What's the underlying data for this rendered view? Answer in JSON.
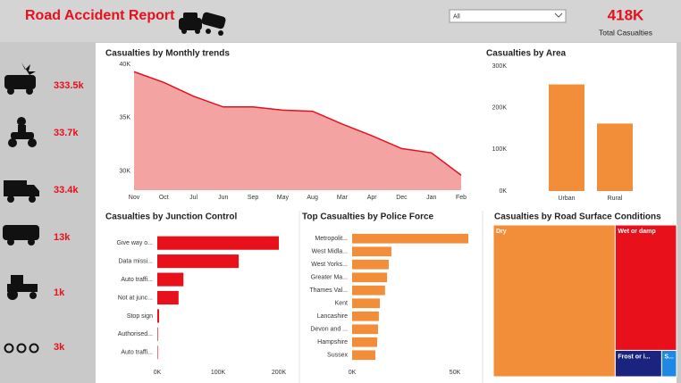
{
  "header": {
    "title": "Road Accident Report",
    "filter": "All",
    "kpi_value": "418K",
    "kpi_label": "Total Casualties"
  },
  "sidebar": [
    "333.5k",
    "33.7k",
    "33.4k",
    "13k",
    "1k",
    "3k"
  ],
  "chart_data": [
    {
      "type": "area",
      "title": "Casualties by Monthly trends",
      "categories": [
        "Nov",
        "Oct",
        "Jul",
        "Jun",
        "Sep",
        "May",
        "Aug",
        "Mar",
        "Apr",
        "Dec",
        "Jan",
        "Feb"
      ],
      "values": [
        39300,
        38300,
        37000,
        36000,
        36000,
        35700,
        35600,
        34400,
        33300,
        32100,
        31700,
        29600
      ],
      "color": "#e8101a",
      "fill": "#f4a3a3",
      "ylim": [
        28200,
        40000
      ],
      "yticks": [
        {
          "value": 30000,
          "label": "30K"
        },
        {
          "value": 35000,
          "label": "35K"
        },
        {
          "value": 40000,
          "label": "40K"
        }
      ]
    },
    {
      "type": "bar",
      "title": "Casualties by Area",
      "categories": [
        "Urban",
        "Rural"
      ],
      "values": [
        256000,
        162000
      ],
      "color": "#f28e3a",
      "ylim": [
        0,
        300000
      ],
      "yticks": [
        {
          "value": 0,
          "label": "0K"
        },
        {
          "value": 100000,
          "label": "100K"
        },
        {
          "value": 200000,
          "label": "200K"
        },
        {
          "value": 300000,
          "label": "300K"
        }
      ]
    },
    {
      "type": "hbar",
      "title": "Casualties by Junction Control",
      "categories": [
        "Give way o...",
        "Data missi...",
        "Auto traffi...",
        "Not at junc...",
        "Stop sign",
        "Authorised...",
        "Auto traffi..."
      ],
      "values": [
        200000,
        134000,
        43000,
        35000,
        3000,
        1000,
        500
      ],
      "color": "#e8101a",
      "xlim": [
        0,
        200000
      ],
      "xticks": [
        {
          "value": 0,
          "label": "0K"
        },
        {
          "value": 100000,
          "label": "100K"
        },
        {
          "value": 200000,
          "label": "200K"
        }
      ]
    },
    {
      "type": "hbar",
      "title": "Top Casualties by Police Force",
      "categories": [
        "Metropolit...",
        "West Midla...",
        "West Yorks...",
        "Greater Ma...",
        "Thames Val...",
        "Kent",
        "Lancashire",
        "Devon and ...",
        "Hampshire",
        "Sussex"
      ],
      "values": [
        56500,
        19100,
        17800,
        17000,
        16000,
        13500,
        13000,
        12600,
        12200,
        11300
      ],
      "color": "#f28e3a",
      "xlim": [
        0,
        56500
      ],
      "xticks": [
        {
          "value": 0,
          "label": "0K"
        },
        {
          "value": 50000,
          "label": "50K"
        }
      ]
    },
    {
      "type": "treemap",
      "title": "Casualties by Road Surface Conditions",
      "categories": [
        "Dry",
        "Wet or damp",
        "Frost or i...",
        "S..."
      ],
      "values": [
        279000,
        116000,
        18500,
        5900
      ],
      "colors": [
        "#f28e3a",
        "#e8101a",
        "#1a237e",
        "#1e88e5"
      ]
    }
  ]
}
